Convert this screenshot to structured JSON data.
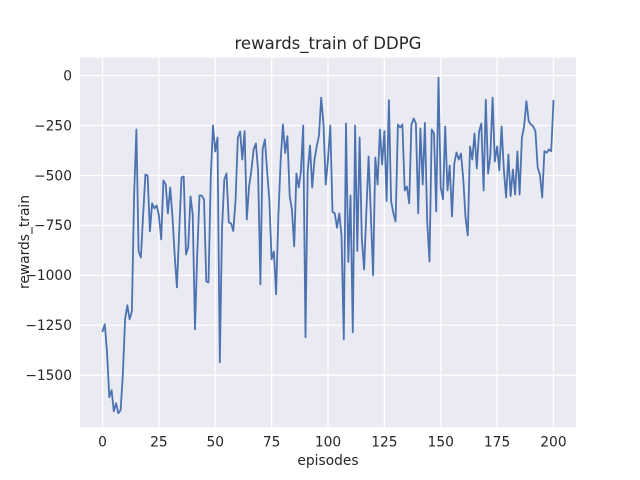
{
  "figure": {
    "title": "rewards_train of DDPG",
    "xlabel": "episodes",
    "ylabel": "rewards_train"
  },
  "colors": {
    "line": "#4c72b0",
    "axes_background": "#eaeaf2",
    "grid": "#ffffff",
    "figure_background": "#ffffff",
    "text": "#262626"
  },
  "chart_data": {
    "type": "line",
    "title": "rewards_train of DDPG",
    "xlabel": "episodes",
    "ylabel": "rewards_train",
    "xlim": [
      -10,
      210
    ],
    "ylim": [
      -1760,
      90
    ],
    "x_ticks": [
      0,
      25,
      50,
      75,
      100,
      125,
      150,
      175,
      200
    ],
    "y_ticks": [
      0,
      -250,
      -500,
      -750,
      -1000,
      -1250,
      -1500
    ],
    "grid": true,
    "legend": false,
    "series": [
      {
        "name": "rewards_train",
        "color": "#4c72b0",
        "x_start": 0,
        "x_step": 1,
        "values": [
          -1280,
          -1245,
          -1390,
          -1610,
          -1575,
          -1680,
          -1640,
          -1690,
          -1675,
          -1500,
          -1220,
          -1150,
          -1220,
          -1180,
          -600,
          -270,
          -880,
          -910,
          -700,
          -495,
          -500,
          -780,
          -640,
          -665,
          -650,
          -700,
          -820,
          -525,
          -545,
          -690,
          -560,
          -700,
          -900,
          -1060,
          -780,
          -510,
          -505,
          -895,
          -860,
          -605,
          -695,
          -1270,
          -900,
          -600,
          -600,
          -620,
          -1030,
          -1035,
          -500,
          -250,
          -380,
          -310,
          -1435,
          -770,
          -520,
          -490,
          -735,
          -740,
          -778,
          -620,
          -312,
          -280,
          -420,
          -278,
          -720,
          -553,
          -478,
          -370,
          -340,
          -478,
          -1045,
          -370,
          -320,
          -478,
          -628,
          -920,
          -880,
          -1095,
          -700,
          -420,
          -245,
          -387,
          -303,
          -603,
          -670,
          -855,
          -490,
          -560,
          -480,
          -250,
          -1310,
          -480,
          -350,
          -560,
          -420,
          -355,
          -300,
          -110,
          -245,
          -545,
          -420,
          -250,
          -682,
          -690,
          -762,
          -690,
          -800,
          -1320,
          -240,
          -933,
          -600,
          -1285,
          -250,
          -878,
          -310,
          -815,
          -970,
          -690,
          -405,
          -690,
          -1000,
          -410,
          -545,
          -270,
          -445,
          -278,
          -628,
          -123,
          -628,
          -690,
          -730,
          -245,
          -260,
          -245,
          -575,
          -555,
          -640,
          -245,
          -215,
          -240,
          -690,
          -265,
          -545,
          -237,
          -730,
          -930,
          -270,
          -290,
          -680,
          -10,
          -560,
          -620,
          -255,
          -575,
          -450,
          -705,
          -440,
          -385,
          -420,
          -390,
          -520,
          -710,
          -800,
          -355,
          -420,
          -290,
          -465,
          -280,
          -240,
          -575,
          -120,
          -490,
          -405,
          -110,
          -430,
          -355,
          -475,
          -255,
          -475,
          -610,
          -395,
          -603,
          -470,
          -595,
          -380,
          -595,
          -312,
          -254,
          -128,
          -228,
          -245,
          -254,
          -278,
          -462,
          -495,
          -610,
          -378,
          -386,
          -370,
          -378,
          -125
        ]
      }
    ]
  }
}
